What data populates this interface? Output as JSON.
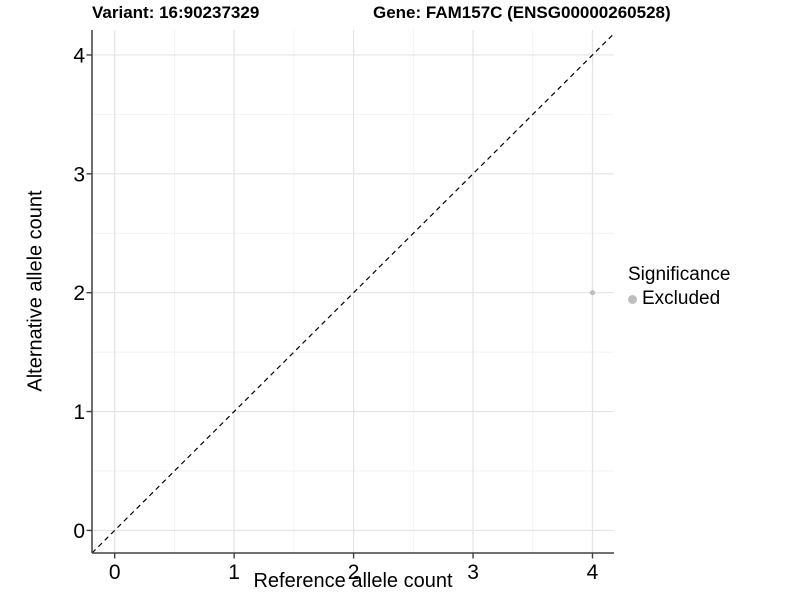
{
  "chart_data": {
    "type": "scatter",
    "title_left": "Variant: 16:90237329",
    "title_right": "Gene: FAM157C (ENSG00000260528)",
    "xlabel": "Reference allele count",
    "ylabel": "Alternative allele count",
    "xlim": [
      -0.19,
      4.18
    ],
    "ylim": [
      -0.19,
      4.21
    ],
    "x_ticks": [
      0,
      1,
      2,
      3,
      4
    ],
    "y_ticks": [
      0,
      1,
      2,
      3,
      4
    ],
    "x_minor": [
      0.5,
      1.5,
      2.5,
      3.5
    ],
    "y_minor": [
      0.5,
      1.5,
      2.5,
      3.5
    ],
    "grid": true,
    "legend_position": "right",
    "identity_line": {
      "slope": 1,
      "intercept": 0,
      "style": "dashed",
      "color": "#000000"
    },
    "points": [
      {
        "x": 4,
        "y": 2,
        "significance": "Excluded"
      }
    ],
    "legend": {
      "title": "Significance",
      "entries": [
        {
          "label": "Excluded",
          "color": "#bebebe"
        }
      ]
    },
    "colors": {
      "point_excluded": "#bebebe",
      "grid_major": "#e4e4e4",
      "grid_minor": "#f2f2f2",
      "axis_line": "#404040",
      "tick_text": "#000000"
    }
  }
}
